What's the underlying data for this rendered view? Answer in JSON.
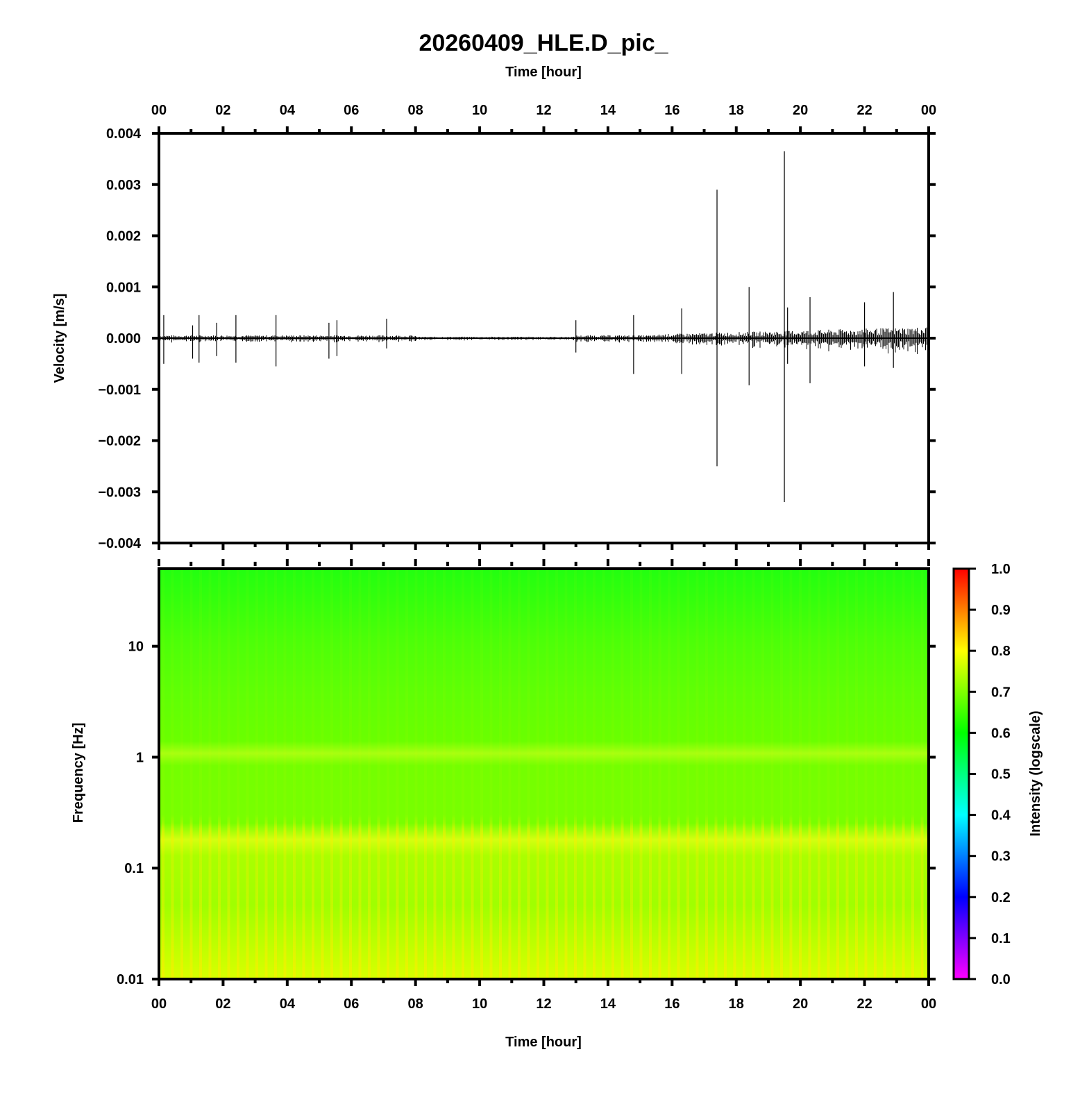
{
  "chart_data": [
    {
      "type": "line",
      "panel": "waveform",
      "title": "20260409_HLE.D_pic_",
      "xlabel_top": "Time [hour]",
      "ylabel": "Velocity [m/s]",
      "x_tick_labels": [
        "00",
        "02",
        "04",
        "06",
        "08",
        "10",
        "12",
        "14",
        "16",
        "18",
        "20",
        "22",
        "00"
      ],
      "xlim": [
        0,
        24
      ],
      "ylim": [
        -0.004,
        0.004
      ],
      "y_tick_values": [
        0.004,
        0.003,
        0.002,
        0.001,
        0.0,
        -0.001,
        -0.002,
        -0.003,
        -0.004
      ],
      "y_tick_labels": [
        "0.004",
        "0.003",
        "0.002",
        "0.001",
        "0.000",
        "−0.001",
        "−0.002",
        "−0.003",
        "−0.004"
      ],
      "series": [
        {
          "x": [
            0.15,
            1.05,
            1.25,
            1.8,
            2.4,
            3.65,
            5.3,
            5.55,
            7.1,
            13.0,
            14.8,
            16.3,
            17.4,
            18.4,
            19.5,
            19.6,
            20.3,
            22.0,
            22.9
          ],
          "y_max": [
            0.00045,
            0.00025,
            0.00045,
            0.0003,
            0.00045,
            0.00045,
            0.0003,
            0.00035,
            0.00038,
            0.00035,
            0.00045,
            0.00058,
            0.0029,
            0.001,
            0.00365,
            0.0006,
            0.0008,
            0.0007,
            0.0009
          ],
          "y_min": [
            -0.0005,
            -0.0004,
            -0.00048,
            -0.00035,
            -0.00048,
            -0.00055,
            -0.0004,
            -0.00035,
            -0.0002,
            -0.00028,
            -0.0007,
            -0.0007,
            -0.0025,
            -0.00092,
            -0.0032,
            -0.0005,
            -0.00088,
            -0.00055,
            -0.00058
          ]
        }
      ]
    },
    {
      "type": "heatmap",
      "panel": "spectrogram",
      "xlabel": "Time [hour]",
      "ylabel": "Frequency [Hz]",
      "x_tick_labels": [
        "00",
        "02",
        "04",
        "06",
        "08",
        "10",
        "12",
        "14",
        "16",
        "18",
        "20",
        "22",
        "00"
      ],
      "xlim": [
        0,
        24
      ],
      "ylim": [
        0.01,
        50
      ],
      "yscale": "log",
      "y_tick_values": [
        10,
        1,
        0.1,
        0.01
      ],
      "y_tick_labels": [
        "10",
        "1",
        "0.1",
        "0.01"
      ],
      "colorbar": {
        "label": "Intensity (logscale)",
        "range": [
          0.0,
          1.0
        ],
        "tick_labels": [
          "1.0",
          "0.9",
          "0.8",
          "0.7",
          "0.6",
          "0.5",
          "0.4",
          "0.3",
          "0.2",
          "0.1",
          "0.0"
        ],
        "colors": [
          "#ff00ff",
          "#8000ff",
          "#0000ff",
          "#00aaff",
          "#00ffff",
          "#00ff80",
          "#00ff00",
          "#80ff00",
          "#ffff00",
          "#ff8000",
          "#ff0000"
        ]
      },
      "intensity_profile": [
        {
          "freq": 50,
          "value": 0.62
        },
        {
          "freq": 10,
          "value": 0.66
        },
        {
          "freq": 3,
          "value": 0.67
        },
        {
          "freq": 1.2,
          "value": 0.71
        },
        {
          "freq": 0.5,
          "value": 0.68
        },
        {
          "freq": 0.2,
          "value": 0.77
        },
        {
          "freq": 0.05,
          "value": 0.74
        },
        {
          "freq": 0.01,
          "value": 0.8
        }
      ]
    }
  ]
}
